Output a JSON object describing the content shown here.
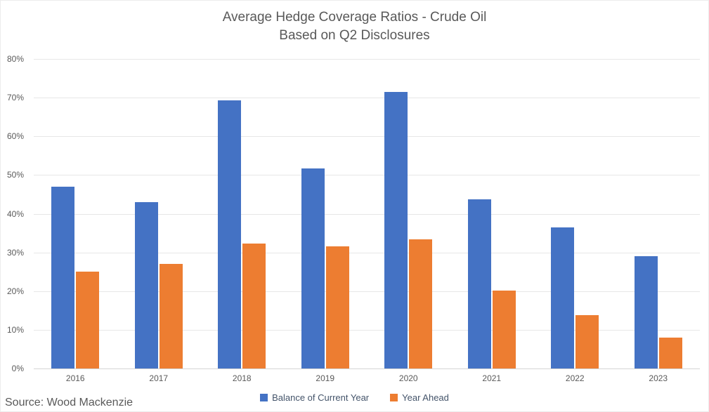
{
  "title": {
    "line1": "Average Hedge Coverage Ratios - Crude Oil",
    "line2": "Based on Q2 Disclosures"
  },
  "source": "Source: Wood Mackenzie",
  "colors": {
    "series_blue": "#4472C4",
    "series_orange": "#ED7D31",
    "gridline": "#E7E7E7",
    "axis_text": "#595959",
    "legend_text": "#44546A"
  },
  "chart_data": {
    "type": "bar",
    "title": "Average Hedge Coverage Ratios - Crude Oil — Based on Q2 Disclosures",
    "categories": [
      "2016",
      "2017",
      "2018",
      "2019",
      "2020",
      "2021",
      "2022",
      "2023"
    ],
    "series": [
      {
        "name": "Balance of Current Year",
        "color": "#4472C4",
        "values": [
          47.0,
          43.0,
          69.3,
          51.7,
          71.4,
          43.8,
          36.5,
          29.0
        ]
      },
      {
        "name": "Year Ahead",
        "color": "#ED7D31",
        "values": [
          25.0,
          27.0,
          32.3,
          31.6,
          33.4,
          20.2,
          13.8,
          8.0
        ]
      }
    ],
    "xlabel": "",
    "ylabel": "",
    "ylim": [
      0,
      80
    ],
    "ytick_step": 10,
    "ytick_format": "percent",
    "grid": "horizontal-only",
    "legend_position": "bottom-center",
    "annotations": [
      "Source: Wood Mackenzie"
    ]
  }
}
